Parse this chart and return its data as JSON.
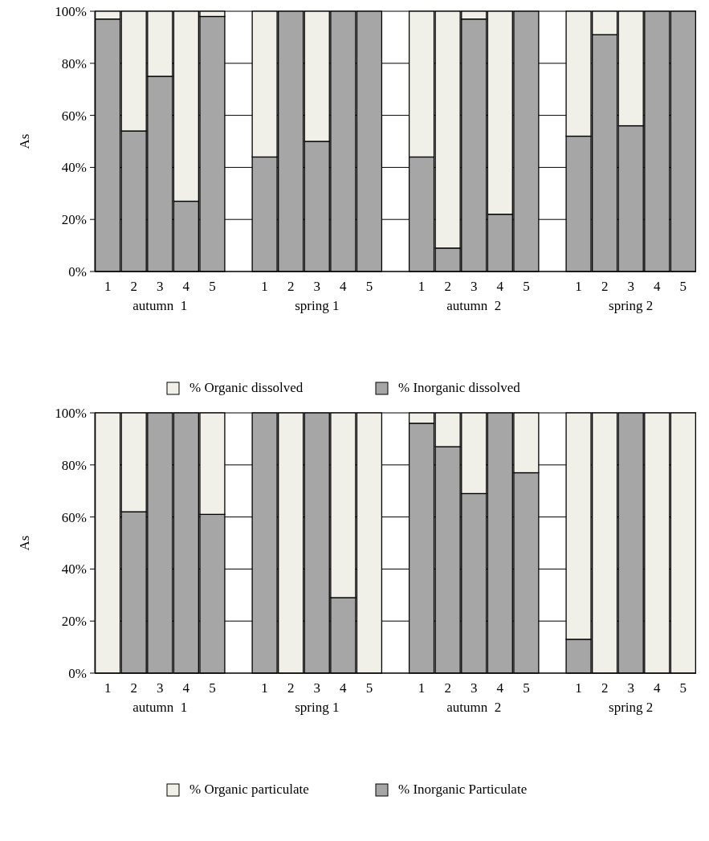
{
  "chart_data": [
    {
      "type": "bar",
      "stacked": true,
      "ylabel": "As",
      "categories": [
        "1",
        "2",
        "3",
        "4",
        "5",
        null,
        "1",
        "2",
        "3",
        "4",
        "5",
        null,
        "1",
        "2",
        "3",
        "4",
        "5",
        null,
        "1",
        "2",
        "3",
        "4",
        "5"
      ],
      "annotations": [
        "autumn  1",
        "spring 1",
        "autumn  2",
        "spring 2"
      ],
      "series": [
        {
          "name": "% Inorganic dissolved",
          "color": "#a6a6a6",
          "values": [
            97,
            54,
            75,
            27,
            98,
            null,
            44,
            100,
            50,
            100,
            100,
            null,
            44,
            9,
            97,
            22,
            100,
            null,
            52,
            91,
            56,
            100,
            100
          ]
        },
        {
          "name": "% Organic dissolved",
          "color": "#f0f0e8",
          "values": [
            3,
            46,
            25,
            73,
            2,
            null,
            56,
            0,
            50,
            0,
            0,
            null,
            56,
            91,
            3,
            78,
            0,
            null,
            48,
            9,
            44,
            0,
            0
          ]
        }
      ],
      "ylim": [
        0,
        100
      ],
      "yticks": [
        {
          "value": 0,
          "label": "0%"
        },
        {
          "value": 20,
          "label": "20%"
        },
        {
          "value": 40,
          "label": "40%"
        },
        {
          "value": 60,
          "label": "60%"
        },
        {
          "value": 80,
          "label": "80%"
        },
        {
          "value": 100,
          "label": "100%"
        }
      ],
      "grid": "y",
      "legend": "bottom"
    },
    {
      "type": "bar",
      "stacked": true,
      "ylabel": "As",
      "categories": [
        "1",
        "2",
        "3",
        "4",
        "5",
        null,
        "1",
        "2",
        "3",
        "4",
        "5",
        null,
        "1",
        "2",
        "3",
        "4",
        "5",
        null,
        "1",
        "2",
        "3",
        "4",
        "5"
      ],
      "annotations": [
        "autumn  1",
        "spring 1",
        "autumn  2",
        "spring 2"
      ],
      "series": [
        {
          "name": "% Inorganic Particulate",
          "color": "#a6a6a6",
          "values": [
            0,
            62,
            100,
            100,
            61,
            null,
            100,
            0,
            100,
            29,
            0,
            null,
            96,
            87,
            69,
            100,
            77,
            null,
            13,
            0,
            100,
            0,
            0
          ]
        },
        {
          "name": "% Organic particulate",
          "color": "#f0f0e8",
          "values": [
            100,
            38,
            0,
            0,
            39,
            null,
            0,
            100,
            0,
            71,
            100,
            null,
            4,
            13,
            31,
            0,
            23,
            null,
            87,
            100,
            0,
            100,
            100
          ]
        }
      ],
      "ylim": [
        0,
        100
      ],
      "yticks": [
        {
          "value": 0,
          "label": "0%"
        },
        {
          "value": 20,
          "label": "20%"
        },
        {
          "value": 40,
          "label": "40%"
        },
        {
          "value": 60,
          "label": "60%"
        },
        {
          "value": 80,
          "label": "80%"
        },
        {
          "value": 100,
          "label": "100%"
        }
      ],
      "grid": "y",
      "legend": "bottom"
    }
  ]
}
